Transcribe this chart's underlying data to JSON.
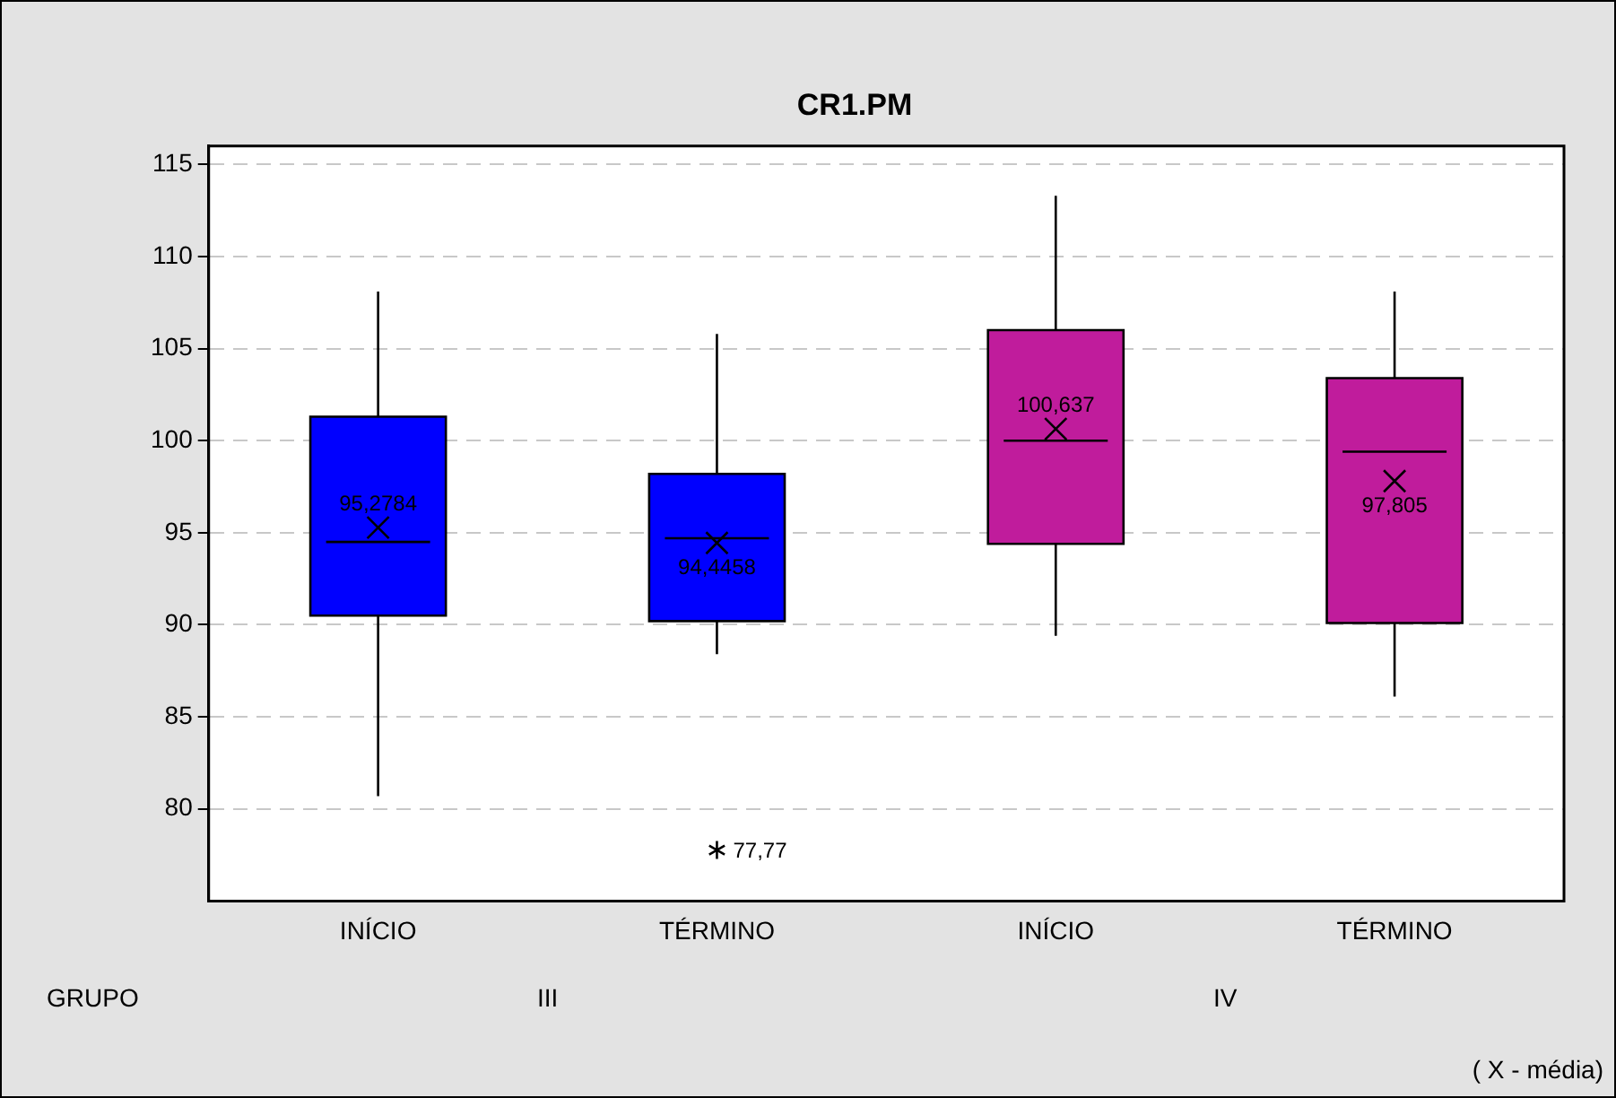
{
  "chart_data": {
    "type": "box",
    "title": "CR1.PM",
    "categories": [
      "INÍCIO",
      "TÉRMINO",
      "INÍCIO",
      "TÉRMINO"
    ],
    "colors": [
      "#0000ff",
      "#0000ff",
      "#c01c9c",
      "#c01c9c"
    ],
    "boxes": [
      {
        "low": 80.7,
        "q1": 90.5,
        "median": 94.5,
        "q3": 101.3,
        "high": 108.1,
        "mean": 95.2784
      },
      {
        "low": 88.4,
        "q1": 90.2,
        "median": 94.7,
        "q3": 98.2,
        "high": 105.8,
        "mean": 94.4458,
        "outliers": [
          77.77
        ]
      },
      {
        "low": 89.4,
        "q1": 94.4,
        "median": 100,
        "q3": 106,
        "high": 113.3,
        "mean": 100.637
      },
      {
        "low": 86.1,
        "q1": 90.1,
        "median": 99.4,
        "q3": 103.4,
        "high": 108.1,
        "mean": 97.805
      }
    ],
    "ylim": [
      75,
      116
    ],
    "yticks": [
      80,
      85,
      90,
      95,
      100,
      105,
      110,
      115
    ],
    "grid": "y",
    "annotations": [
      "GRUPO",
      "III",
      "IV",
      "95,2784",
      "94,4458",
      "77,77",
      "100,637",
      "97,805",
      "( X - média)"
    ]
  }
}
